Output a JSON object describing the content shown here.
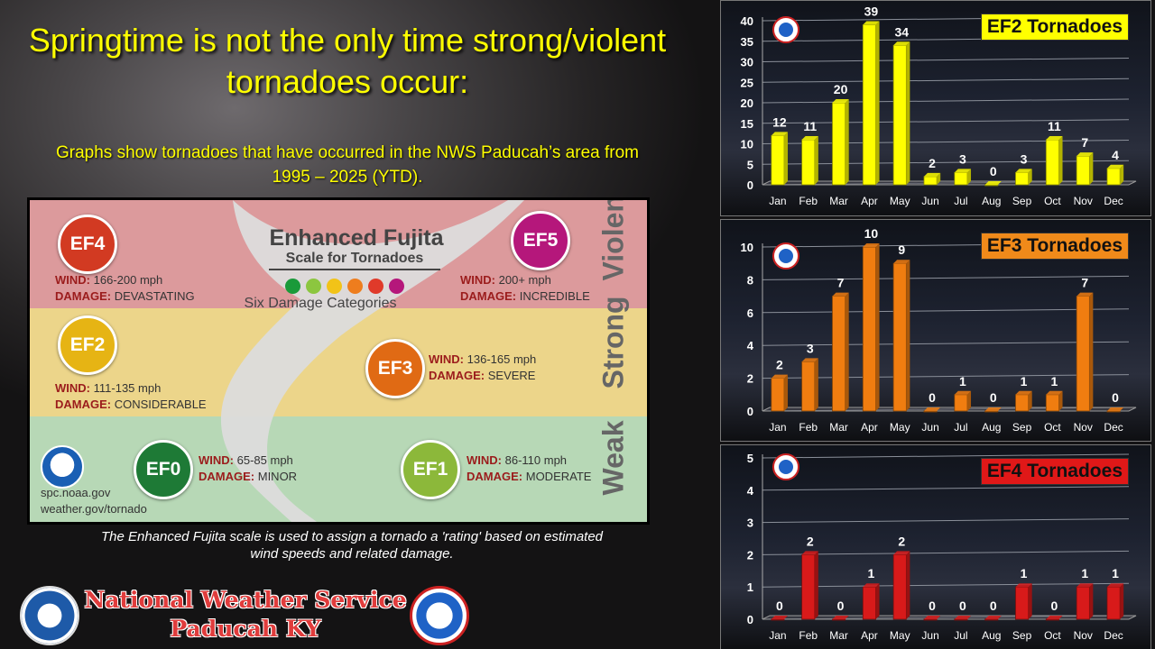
{
  "title_line1": "Springtime is not the only time strong/violent",
  "title_line2": "tornadoes occur:",
  "subtitle_line1": "Graphs show tornadoes that have occurred in the NWS Paducah’s area from",
  "subtitle_line2": "1995 – 2025 (YTD).",
  "ef_scale": {
    "title": "Enhanced Fujita",
    "subtitle": "Scale for Tornadoes",
    "categories_label": "Six Damage Categories",
    "dot_colors": [
      "#1a9a3a",
      "#8cc63f",
      "#f2c318",
      "#ee7d1e",
      "#e03a2a",
      "#b5177b"
    ],
    "bands": {
      "violent": "Violent",
      "strong": "Strong",
      "weak": "Weak"
    },
    "wind_label": "WIND:",
    "damage_label": "DAMAGE:",
    "levels": [
      {
        "badge": "EF0",
        "wind": "65-85 mph",
        "damage": "MINOR",
        "color": "#1e7a36"
      },
      {
        "badge": "EF1",
        "wind": "86-110 mph",
        "damage": "MODERATE",
        "color": "#8cb83a"
      },
      {
        "badge": "EF2",
        "wind": "111-135 mph",
        "damage": "CONSIDERABLE",
        "color": "#e6b414"
      },
      {
        "badge": "EF3",
        "wind": "136-165 mph",
        "damage": "SEVERE",
        "color": "#e06a14"
      },
      {
        "badge": "EF4",
        "wind": "166-200 mph",
        "damage": "DEVASTATING",
        "color": "#d23a22"
      },
      {
        "badge": "EF5",
        "wind": "200+ mph",
        "damage": "INCREDIBLE",
        "color": "#b5177b"
      }
    ],
    "site1": "spc.noaa.gov",
    "site2": "weather.gov/tornado"
  },
  "caption_line1": "The Enhanced Fujita scale is used to assign a tornado a 'rating' based on estimated",
  "caption_line2": "wind  speeds and related damage.",
  "nws_line1": "National Weather Service",
  "nws_line2": "Paducah KY",
  "chart_data": [
    {
      "type": "bar",
      "title": "EF2 Tornadoes",
      "categories": [
        "Jan",
        "Feb",
        "Mar",
        "Apr",
        "May",
        "Jun",
        "Jul",
        "Aug",
        "Sep",
        "Oct",
        "Nov",
        "Dec"
      ],
      "values": [
        12,
        11,
        20,
        39,
        34,
        2,
        3,
        0,
        3,
        11,
        7,
        4
      ],
      "ylim": [
        0,
        40
      ],
      "yticks": [
        0,
        5,
        10,
        15,
        20,
        25,
        30,
        35,
        40
      ],
      "bar_color": "#ffff00",
      "label_bg": "#ffff00",
      "grid": true
    },
    {
      "type": "bar",
      "title": "EF3 Tornadoes",
      "categories": [
        "Jan",
        "Feb",
        "Mar",
        "Apr",
        "May",
        "Jun",
        "Jul",
        "Aug",
        "Sep",
        "Oct",
        "Nov",
        "Dec"
      ],
      "values": [
        2,
        3,
        7,
        10,
        9,
        0,
        1,
        0,
        1,
        1,
        7,
        0
      ],
      "ylim": [
        0,
        10
      ],
      "yticks": [
        0,
        2,
        4,
        6,
        8,
        10
      ],
      "bar_color": "#f07d10",
      "label_bg": "#f08a1a",
      "grid": true
    },
    {
      "type": "bar",
      "title": "EF4 Tornadoes",
      "categories": [
        "Jan",
        "Feb",
        "Mar",
        "Apr",
        "May",
        "Jun",
        "Jul",
        "Aug",
        "Sep",
        "Oct",
        "Nov",
        "Dec"
      ],
      "values": [
        0,
        2,
        0,
        1,
        2,
        0,
        0,
        0,
        1,
        0,
        1,
        1
      ],
      "ylim": [
        0,
        5
      ],
      "yticks": [
        0,
        1,
        2,
        3,
        4,
        5
      ],
      "bar_color": "#d81a1a",
      "label_bg": "#e01818",
      "grid": true
    }
  ]
}
